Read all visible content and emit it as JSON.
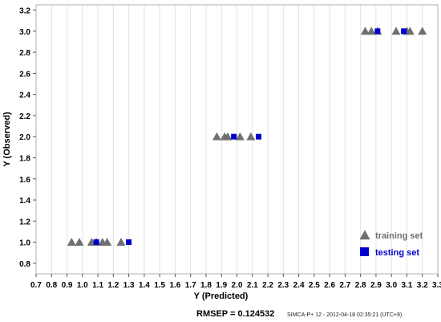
{
  "chart_data": {
    "type": "scatter",
    "xlabel": "Y (Predicted)",
    "ylabel": "Y (Observed)",
    "xlim": [
      0.7,
      3.3
    ],
    "ylim": [
      0.7,
      3.25
    ],
    "x_ticks": [
      "0.7",
      "0.8",
      "0.9",
      "1.0",
      "1.1",
      "1.2",
      "1.3",
      "1.4",
      "1.5",
      "1.6",
      "1.7",
      "1.8",
      "1.9",
      "2.0",
      "2.1",
      "2.2",
      "2.3",
      "2.4",
      "2.5",
      "2.6",
      "2.7",
      "2.8",
      "2.9",
      "3.0",
      "3.1",
      "3.2",
      "3.3"
    ],
    "y_ticks": [
      "0.8",
      "1.0",
      "1.2",
      "1.4",
      "1.6",
      "1.8",
      "2.0",
      "2.2",
      "2.4",
      "2.6",
      "2.8",
      "3.0",
      "3.2"
    ],
    "grid": "vertical",
    "legend_position": "bottom-right",
    "series": [
      {
        "name": "training set",
        "marker": "triangle",
        "color": "#6f6f6f",
        "points": [
          {
            "x": 0.93,
            "y": 1.0
          },
          {
            "x": 0.98,
            "y": 1.0
          },
          {
            "x": 1.06,
            "y": 1.0
          },
          {
            "x": 1.09,
            "y": 1.0
          },
          {
            "x": 1.13,
            "y": 1.0
          },
          {
            "x": 1.16,
            "y": 1.0
          },
          {
            "x": 1.25,
            "y": 1.0
          },
          {
            "x": 1.87,
            "y": 2.0
          },
          {
            "x": 1.92,
            "y": 2.0
          },
          {
            "x": 1.94,
            "y": 2.0
          },
          {
            "x": 2.02,
            "y": 2.0
          },
          {
            "x": 2.09,
            "y": 2.0
          },
          {
            "x": 2.83,
            "y": 3.0
          },
          {
            "x": 2.87,
            "y": 3.0
          },
          {
            "x": 2.91,
            "y": 3.0
          },
          {
            "x": 3.03,
            "y": 3.0
          },
          {
            "x": 3.1,
            "y": 3.0
          },
          {
            "x": 3.12,
            "y": 3.0
          },
          {
            "x": 3.2,
            "y": 3.0
          }
        ]
      },
      {
        "name": "testing set",
        "marker": "square",
        "color": "#0000cc",
        "points": [
          {
            "x": 1.09,
            "y": 1.0
          },
          {
            "x": 1.3,
            "y": 1.0
          },
          {
            "x": 1.98,
            "y": 2.0
          },
          {
            "x": 2.14,
            "y": 2.0
          },
          {
            "x": 2.91,
            "y": 3.0
          },
          {
            "x": 3.08,
            "y": 3.0
          }
        ]
      }
    ]
  },
  "stats": {
    "rmsep": "RMSEP = 0.124532"
  },
  "footer": {
    "software": "SIMCA-P+ 12 - 2012-04-18 02:35:21 (UTC+9)"
  }
}
